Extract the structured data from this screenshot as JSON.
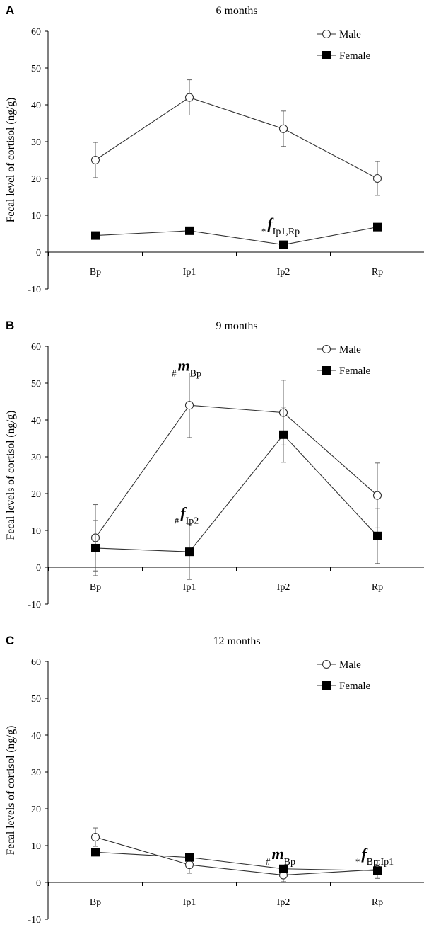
{
  "figure": {
    "colors": {
      "axis": "#000000",
      "line": "#333333",
      "errorbar": "#555555",
      "text": "#000000"
    }
  },
  "chart_data": [
    {
      "type": "line",
      "panel_label": "A",
      "title": "6 months",
      "xlabel": "",
      "ylabel": "Fecal level  of cortisol (ng/g)",
      "ylim": [
        -10,
        60
      ],
      "yticks": [
        -10,
        0,
        10,
        20,
        30,
        40,
        50,
        60
      ],
      "categories": [
        "Bp",
        "Ip1",
        "Ip2",
        "Rp"
      ],
      "legend": {
        "position": "top-right",
        "entries": [
          "Male",
          "Female"
        ]
      },
      "series": [
        {
          "name": "Male",
          "marker": "open-circle",
          "values": [
            25,
            42,
            33.5,
            20
          ],
          "errors": [
            4.8,
            4.8,
            4.8,
            4.6
          ]
        },
        {
          "name": "Female",
          "marker": "filled-square",
          "values": [
            4.5,
            5.8,
            2,
            6.8
          ],
          "errors": [
            0,
            0,
            0,
            0
          ]
        }
      ],
      "annotations": [
        {
          "prefix": "*",
          "letter": "f",
          "sub": "Ip1,Rp",
          "category": "Ip2",
          "value": 6
        }
      ]
    },
    {
      "type": "line",
      "panel_label": "B",
      "title": "9 months",
      "xlabel": "",
      "ylabel": "Fecal levels  of cortisol (ng/g)",
      "ylim": [
        -10,
        60
      ],
      "yticks": [
        -10,
        0,
        10,
        20,
        30,
        40,
        50,
        60
      ],
      "categories": [
        "Bp",
        "Ip1",
        "Ip2",
        "Rp"
      ],
      "legend": {
        "position": "top-right",
        "entries": [
          "Male",
          "Female"
        ]
      },
      "series": [
        {
          "name": "Male",
          "marker": "open-circle",
          "values": [
            8,
            44,
            42,
            19.5
          ],
          "errors": [
            9,
            8.8,
            8.8,
            8.8
          ]
        },
        {
          "name": "Female",
          "marker": "filled-square",
          "values": [
            5.2,
            4.2,
            36,
            8.5
          ],
          "errors": [
            7.5,
            7.5,
            7.5,
            7.5
          ]
        }
      ],
      "annotations": [
        {
          "prefix": "#",
          "letter": "m",
          "sub": "Bp",
          "category": "Ip1",
          "value": 53
        },
        {
          "prefix": "#",
          "letter": "f",
          "sub": "Ip2",
          "category": "Ip1",
          "value": 13
        }
      ]
    },
    {
      "type": "line",
      "panel_label": "C",
      "title": "12 months",
      "xlabel": "",
      "ylabel": "Fecal levels  of cortisol (ng/g)",
      "ylim": [
        -10,
        60
      ],
      "yticks": [
        -10,
        0,
        10,
        20,
        30,
        40,
        50,
        60
      ],
      "categories": [
        "Bp",
        "Ip1",
        "Ip2",
        "Rp"
      ],
      "legend": {
        "position": "top-right",
        "entries": [
          "Male",
          "Female"
        ]
      },
      "series": [
        {
          "name": "Male",
          "marker": "open-circle",
          "values": [
            12.3,
            4.8,
            2,
            3.5
          ],
          "errors": [
            2.5,
            2.3,
            1.8,
            2.4
          ]
        },
        {
          "name": "Female",
          "marker": "filled-square",
          "values": [
            8.2,
            6.8,
            3.7,
            3.2
          ],
          "errors": [
            0.8,
            0.8,
            0.8,
            0.8
          ]
        }
      ],
      "annotations": [
        {
          "prefix": "#",
          "letter": "m",
          "sub": "Bp",
          "category": "Ip2",
          "value": 6
        },
        {
          "prefix": "*",
          "letter": "f",
          "sub": "Bp,Ip1",
          "category": "Rp",
          "value": 6
        }
      ]
    }
  ]
}
